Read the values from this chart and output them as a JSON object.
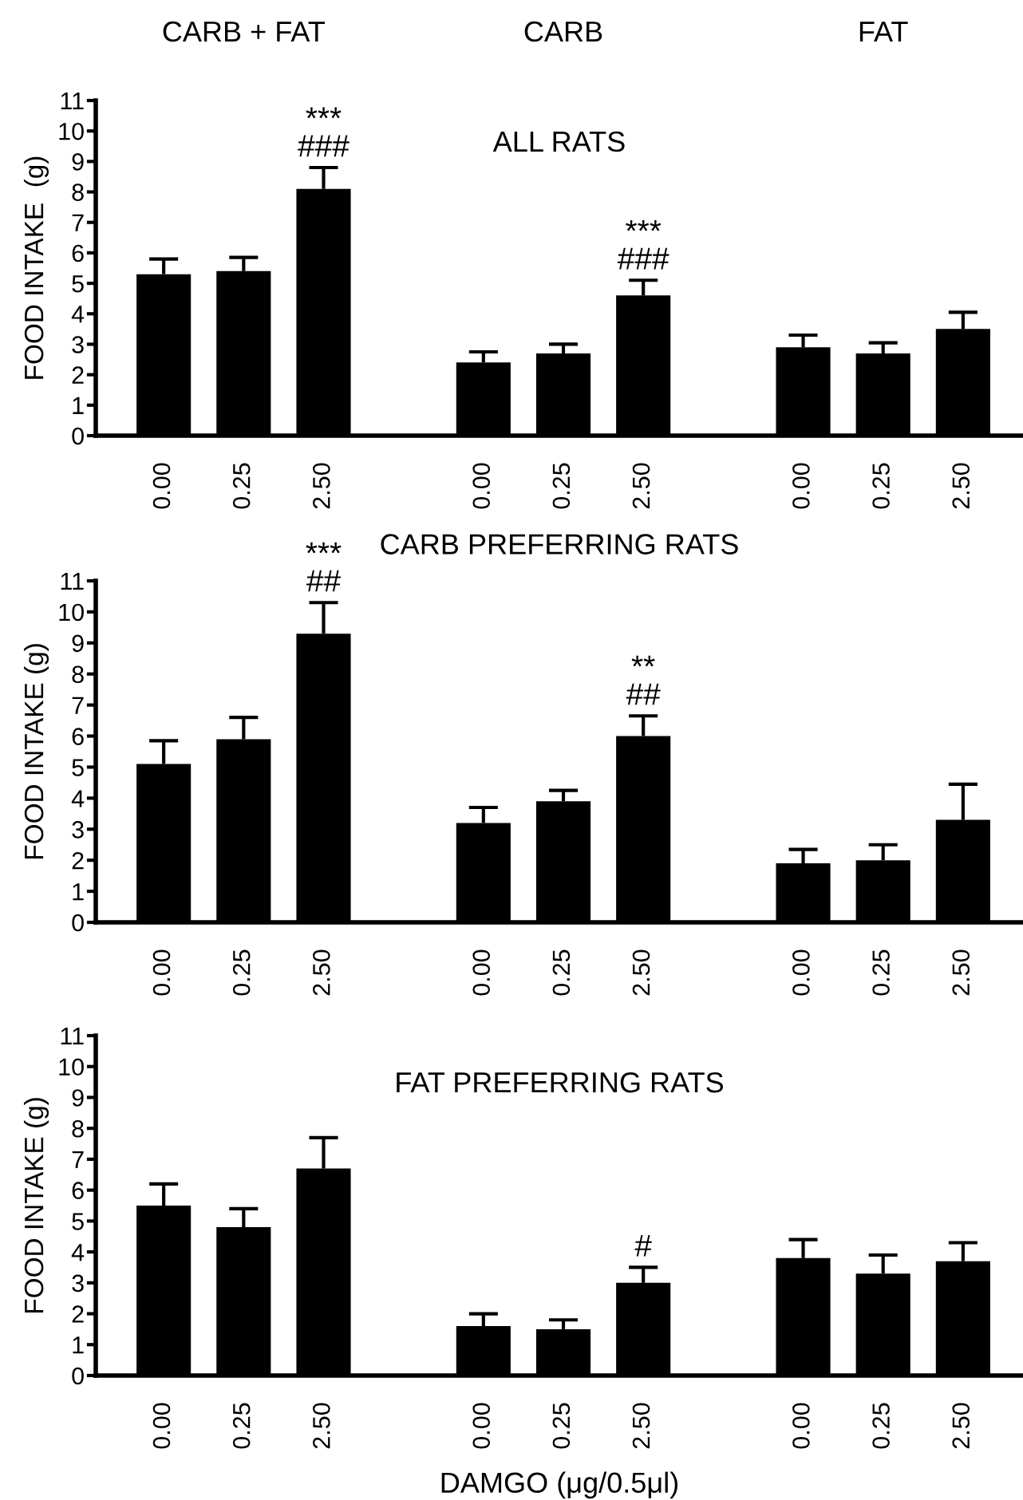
{
  "chart_data": [
    {
      "type": "bar",
      "title": "ALL RATS",
      "ylabel": "FOOD INTAKE  (g)",
      "categories": [
        "0.00",
        "0.25",
        "2.50",
        null,
        "0.00",
        "0.25",
        "2.50",
        null,
        "0.00",
        "0.25",
        "2.50"
      ],
      "values": [
        5.3,
        5.4,
        8.1,
        null,
        2.4,
        2.7,
        4.6,
        null,
        2.9,
        2.7,
        3.5
      ],
      "color": "#000000",
      "errors": [
        [
          5.3,
          5.8
        ],
        [
          5.4,
          5.85
        ],
        [
          8.1,
          8.8
        ],
        null,
        [
          2.4,
          2.75
        ],
        [
          2.7,
          3.0
        ],
        [
          4.6,
          5.1
        ],
        null,
        [
          2.9,
          3.3
        ],
        [
          2.7,
          3.05
        ],
        [
          3.5,
          4.05
        ]
      ],
      "value_labels": [
        null,
        null,
        "***\n###",
        null,
        null,
        null,
        "***\n###",
        null,
        null,
        null,
        null
      ],
      "annotations": [
        "CARB + FAT",
        "CARB",
        "FAT"
      ],
      "ylim": [
        0,
        11
      ],
      "yticks": [
        0,
        1,
        2,
        3,
        4,
        5,
        6,
        7,
        8,
        9,
        10,
        11
      ],
      "grid": false,
      "legend": false
    },
    {
      "type": "bar",
      "title": "CARB PREFERRING RATS",
      "ylabel": "FOOD INTAKE (g)",
      "categories": [
        "0.00",
        "0.25",
        "2.50",
        null,
        "0.00",
        "0.25",
        "2.50",
        null,
        "0.00",
        "0.25",
        "2.50"
      ],
      "values": [
        5.1,
        5.9,
        9.3,
        null,
        3.2,
        3.9,
        6.0,
        null,
        1.9,
        2.0,
        3.3
      ],
      "color": "#000000",
      "errors": [
        [
          5.1,
          5.85
        ],
        [
          5.9,
          6.6
        ],
        [
          9.3,
          10.3
        ],
        null,
        [
          3.2,
          3.7
        ],
        [
          3.9,
          4.25
        ],
        [
          6.0,
          6.65
        ],
        null,
        [
          1.9,
          2.35
        ],
        [
          2.0,
          2.5
        ],
        [
          3.3,
          4.45
        ]
      ],
      "value_labels": [
        null,
        null,
        "***\n##",
        null,
        null,
        null,
        "**\n##",
        null,
        null,
        null,
        null
      ],
      "ylim": [
        0,
        11
      ],
      "yticks": [
        0,
        1,
        2,
        3,
        4,
        5,
        6,
        7,
        8,
        9,
        10,
        11
      ],
      "grid": false,
      "legend": false
    },
    {
      "type": "bar",
      "title": "FAT PREFERRING RATS",
      "ylabel": "FOOD INTAKE (g)",
      "xlabel": "DAMGO (μg/0.5μl)",
      "categories": [
        "0.00",
        "0.25",
        "2.50",
        null,
        "0.00",
        "0.25",
        "2.50",
        null,
        "0.00",
        "0.25",
        "2.50"
      ],
      "values": [
        5.5,
        4.8,
        6.7,
        null,
        1.6,
        1.5,
        3.0,
        null,
        3.8,
        3.3,
        3.7
      ],
      "color": "#000000",
      "errors": [
        [
          5.5,
          6.2
        ],
        [
          4.8,
          5.4
        ],
        [
          6.7,
          7.7
        ],
        null,
        [
          1.6,
          2.0
        ],
        [
          1.5,
          1.8
        ],
        [
          3.0,
          3.5
        ],
        null,
        [
          3.8,
          4.4
        ],
        [
          3.3,
          3.9
        ],
        [
          3.7,
          4.3
        ]
      ],
      "value_labels": [
        null,
        null,
        null,
        null,
        null,
        null,
        "#",
        null,
        null,
        null,
        null
      ],
      "ylim": [
        0,
        11
      ],
      "yticks": [
        0,
        1,
        2,
        3,
        4,
        5,
        6,
        7,
        8,
        9,
        10,
        11
      ],
      "grid": false,
      "legend": false
    }
  ]
}
